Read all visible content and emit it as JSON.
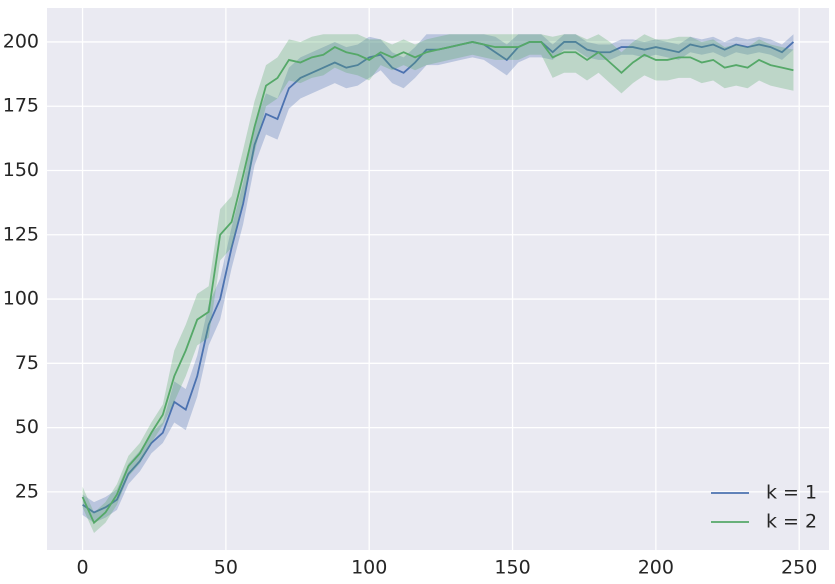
{
  "chart_data": {
    "type": "line",
    "x": [
      0,
      4,
      8,
      12,
      16,
      20,
      24,
      28,
      32,
      36,
      40,
      44,
      48,
      52,
      56,
      60,
      64,
      68,
      72,
      76,
      80,
      84,
      88,
      92,
      96,
      100,
      104,
      108,
      112,
      116,
      120,
      124,
      128,
      132,
      136,
      140,
      144,
      148,
      152,
      156,
      160,
      164,
      168,
      172,
      176,
      180,
      184,
      188,
      192,
      196,
      200,
      204,
      208,
      212,
      216,
      220,
      224,
      228,
      232,
      236,
      240,
      244,
      248
    ],
    "series": [
      {
        "name": "k = 1",
        "color": "#4c72b0",
        "values": [
          20,
          17,
          19,
          22,
          32,
          37,
          44,
          48,
          60,
          57,
          70,
          90,
          100,
          120,
          137,
          160,
          172,
          170,
          182,
          186,
          188,
          190,
          192,
          190,
          191,
          194,
          195,
          190,
          188,
          192,
          197,
          197,
          198,
          199,
          200,
          199,
          196,
          193,
          198,
          200,
          200,
          196,
          200,
          200,
          197,
          196,
          196,
          198,
          198,
          197,
          198,
          197,
          196,
          199,
          198,
          199,
          197,
          199,
          198,
          199,
          198,
          196,
          200
        ],
        "lower": [
          16,
          13,
          15,
          18,
          28,
          33,
          40,
          44,
          52,
          49,
          62,
          82,
          92,
          112,
          129,
          152,
          164,
          162,
          174,
          178,
          180,
          182,
          184,
          182,
          183,
          186,
          189,
          184,
          182,
          186,
          191,
          191,
          192,
          193,
          194,
          193,
          190,
          187,
          192,
          194,
          194,
          193,
          197,
          197,
          194,
          193,
          193,
          195,
          195,
          194,
          195,
          194,
          193,
          196,
          195,
          196,
          194,
          196,
          195,
          196,
          195,
          193,
          197
        ],
        "upper": [
          24,
          21,
          23,
          26,
          36,
          41,
          48,
          52,
          68,
          65,
          78,
          98,
          108,
          128,
          145,
          168,
          180,
          178,
          190,
          194,
          196,
          198,
          200,
          198,
          199,
          202,
          201,
          196,
          194,
          198,
          203,
          203,
          203,
          203,
          203,
          203,
          202,
          199,
          203,
          203,
          203,
          199,
          203,
          203,
          200,
          199,
          199,
          201,
          201,
          200,
          201,
          200,
          199,
          202,
          201,
          202,
          200,
          202,
          201,
          202,
          201,
          199,
          203
        ]
      },
      {
        "name": "k = 2",
        "color": "#55a868",
        "values": [
          23,
          13,
          17,
          24,
          35,
          40,
          48,
          55,
          70,
          80,
          92,
          95,
          125,
          130,
          148,
          167,
          183,
          186,
          193,
          192,
          194,
          195,
          198,
          196,
          195,
          193,
          196,
          194,
          196,
          194,
          196,
          197,
          198,
          199,
          200,
          199,
          198,
          198,
          198,
          200,
          200,
          194,
          196,
          196,
          193,
          196,
          192,
          188,
          192,
          195,
          193,
          193,
          194,
          194,
          192,
          193,
          190,
          191,
          190,
          193,
          191,
          190,
          189
        ],
        "lower": [
          19,
          9,
          13,
          20,
          31,
          36,
          44,
          51,
          60,
          70,
          82,
          85,
          115,
          120,
          138,
          157,
          175,
          178,
          185,
          184,
          186,
          187,
          190,
          188,
          187,
          185,
          191,
          189,
          191,
          189,
          191,
          192,
          193,
          194,
          195,
          194,
          193,
          193,
          193,
          195,
          195,
          186,
          188,
          188,
          185,
          188,
          184,
          180,
          184,
          187,
          185,
          185,
          186,
          186,
          184,
          185,
          182,
          183,
          182,
          185,
          183,
          182,
          181
        ],
        "upper": [
          27,
          17,
          21,
          28,
          39,
          44,
          52,
          59,
          80,
          90,
          102,
          105,
          135,
          140,
          158,
          177,
          191,
          194,
          201,
          200,
          202,
          203,
          203,
          203,
          203,
          201,
          201,
          199,
          201,
          199,
          201,
          202,
          203,
          203,
          203,
          203,
          203,
          203,
          203,
          203,
          203,
          202,
          203,
          203,
          201,
          203,
          200,
          196,
          200,
          203,
          201,
          201,
          202,
          202,
          200,
          201,
          198,
          199,
          198,
          201,
          199,
          198,
          197
        ]
      }
    ],
    "xlim": [
      -12.4,
      260.4
    ],
    "ylim": [
      2.4,
      213.2
    ],
    "xticks": [
      0,
      50,
      100,
      150,
      200,
      250
    ],
    "yticks": [
      25,
      50,
      75,
      100,
      125,
      150,
      175,
      200
    ],
    "grid": true,
    "legend": "lower right"
  }
}
